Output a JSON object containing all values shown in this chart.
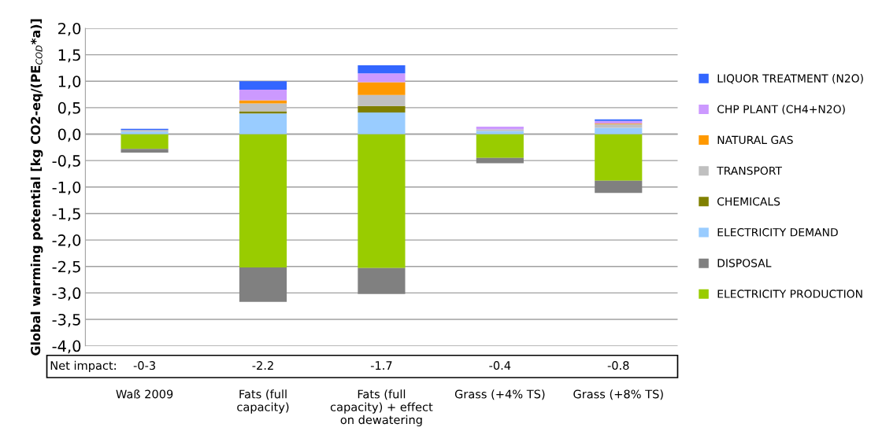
{
  "chart_data": {
    "type": "bar",
    "stacked": true,
    "ylabel": "Global warming potential [kg CO2-eq/(PE$_{COD}$*a)]",
    "categories": [
      "Waß 2009",
      "Fats (full\ncapacity)",
      "Fats (full\ncapacity) + effect\non dewatering",
      "Grass (+4% TS)",
      "Grass (+8% TS)"
    ],
    "series": [
      {
        "name": "ELECTRICITY PRODUCTION",
        "color": "#99cc00",
        "values": [
          -0.28,
          -2.52,
          -2.53,
          -0.45,
          -0.88
        ]
      },
      {
        "name": "DISPOSAL",
        "color": "#808080",
        "values": [
          -0.07,
          -0.65,
          -0.49,
          -0.1,
          -0.23
        ]
      },
      {
        "name": "ELECTRICITY DEMAND",
        "color": "#99ccff",
        "values": [
          0.05,
          0.39,
          0.41,
          0.06,
          0.12
        ]
      },
      {
        "name": "CHEMICALS",
        "color": "#808000",
        "values": [
          0,
          0.04,
          0.12,
          0,
          0
        ]
      },
      {
        "name": "TRANSPORT",
        "color": "#c0c0c0",
        "values": [
          0.03,
          0.15,
          0.21,
          0.03,
          0.07
        ]
      },
      {
        "name": "NATURAL GAS",
        "color": "#ff9900",
        "values": [
          0,
          0.06,
          0.24,
          0,
          0.01
        ]
      },
      {
        "name": "CHP PLANT (CH4+N2O)",
        "color": "#cc99ff",
        "values": [
          0,
          0.2,
          0.17,
          0.05,
          0.05
        ]
      },
      {
        "name": "LIQUOR TREATMENT (N2O)",
        "color": "#3366ff",
        "values": [
          0.02,
          0.16,
          0.15,
          0,
          0.03
        ]
      }
    ],
    "ylim": [
      -4.0,
      2.0
    ],
    "yticks": [
      {
        "value": -4.0,
        "label": "-4,0"
      },
      {
        "value": -3.5,
        "label": "-3,5"
      },
      {
        "value": -3.0,
        "label": "-3,0"
      },
      {
        "value": -2.5,
        "label": "-2,5"
      },
      {
        "value": -2.0,
        "label": "-2,0"
      },
      {
        "value": -1.5,
        "label": "-1,5"
      },
      {
        "value": -1.0,
        "label": "-1,0"
      },
      {
        "value": -0.5,
        "label": "-0,5"
      },
      {
        "value": 0.0,
        "label": "0,0"
      },
      {
        "value": 0.5,
        "label": "0,5"
      },
      {
        "value": 1.0,
        "label": "1,0"
      },
      {
        "value": 1.5,
        "label": "1,5"
      },
      {
        "value": 2.0,
        "label": "2,0"
      }
    ],
    "grid": "y",
    "legend": "right",
    "annotations": [
      "Net impact:",
      "-0-3",
      "-2.2",
      "-1.7",
      "-0.4",
      "-0.8"
    ]
  }
}
